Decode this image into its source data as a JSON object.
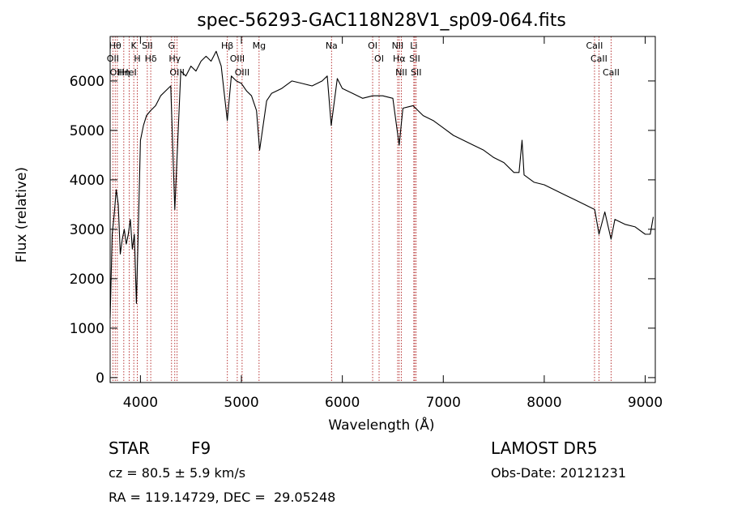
{
  "chart_data": {
    "type": "line",
    "title": "spec-56293-GAC118N28V1_sp09-064.fits",
    "xlabel": "Wavelength (Å)",
    "ylabel": "Flux (relative)",
    "xlim": [
      3700,
      9100
    ],
    "ylim": [
      -100,
      6900
    ],
    "xticks": [
      4000,
      5000,
      6000,
      7000,
      8000,
      9000
    ],
    "yticks": [
      0,
      1000,
      2000,
      3000,
      4000,
      5000,
      6000
    ],
    "grid": false,
    "series": [
      {
        "x": [
          3700,
          3720,
          3740,
          3760,
          3780,
          3800,
          3820,
          3840,
          3860,
          3880,
          3900,
          3920,
          3940,
          3960,
          3980,
          4000,
          4030,
          4060,
          4100,
          4150,
          4200,
          4250,
          4300,
          4340,
          4400,
          4450,
          4500,
          4550,
          4600,
          4650,
          4700,
          4750,
          4800,
          4860,
          4900,
          4950,
          5000,
          5050,
          5100,
          5150,
          5180,
          5250,
          5300,
          5400,
          5500,
          5600,
          5700,
          5800,
          5850,
          5890,
          5950,
          6000,
          6100,
          6200,
          6300,
          6400,
          6500,
          6563,
          6600,
          6700,
          6800,
          6900,
          7000,
          7100,
          7200,
          7300,
          7400,
          7500,
          7600,
          7700,
          7750,
          7780,
          7800,
          7900,
          8000,
          8100,
          8200,
          8300,
          8400,
          8500,
          8542,
          8600,
          8662,
          8700,
          8800,
          8900,
          9000,
          9050,
          9080
        ],
        "y": [
          1200,
          2900,
          3300,
          3800,
          3500,
          2500,
          2800,
          3000,
          2700,
          2900,
          3200,
          2600,
          2900,
          1500,
          3100,
          4800,
          5100,
          5300,
          5400,
          5500,
          5700,
          5800,
          5900,
          3400,
          6200,
          6100,
          6300,
          6200,
          6400,
          6500,
          6400,
          6600,
          6300,
          5200,
          6100,
          6000,
          5950,
          5800,
          5700,
          5400,
          4600,
          5600,
          5750,
          5850,
          6000,
          5950,
          5900,
          6000,
          6100,
          5100,
          6050,
          5850,
          5750,
          5650,
          5700,
          5700,
          5650,
          4700,
          5450,
          5500,
          5300,
          5200,
          5050,
          4900,
          4800,
          4700,
          4600,
          4450,
          4350,
          4150,
          4150,
          4800,
          4100,
          3950,
          3900,
          3800,
          3700,
          3600,
          3500,
          3400,
          2900,
          3350,
          2800,
          3200,
          3100,
          3050,
          2900,
          2900,
          3250
        ]
      }
    ],
    "line_ids": [
      {
        "x": 3750,
        "label": "Hθ"
      },
      {
        "x": 3727,
        "label": "OII"
      },
      {
        "x": 3771,
        "label": "OIII"
      },
      {
        "x": 3835,
        "label": "Hη"
      },
      {
        "x": 3889,
        "label": "HeI"
      },
      {
        "x": 3934,
        "label": "K"
      },
      {
        "x": 3969,
        "label": "H"
      },
      {
        "x": 4068,
        "label": "SII"
      },
      {
        "x": 4102,
        "label": "Hδ"
      },
      {
        "x": 4308,
        "label": "G"
      },
      {
        "x": 4340,
        "label": "Hγ"
      },
      {
        "x": 4363,
        "label": "OIII"
      },
      {
        "x": 4861,
        "label": "Hβ"
      },
      {
        "x": 4959,
        "label": "OIII"
      },
      {
        "x": 5007,
        "label": "OIII"
      },
      {
        "x": 5175,
        "label": "Mg"
      },
      {
        "x": 5893,
        "label": "Na"
      },
      {
        "x": 6300,
        "label": "OI"
      },
      {
        "x": 6364,
        "label": "OI"
      },
      {
        "x": 6548,
        "label": "NII"
      },
      {
        "x": 6563,
        "label": "Hα"
      },
      {
        "x": 6584,
        "label": "NII"
      },
      {
        "x": 6708,
        "label": "Li"
      },
      {
        "x": 6717,
        "label": "SII"
      },
      {
        "x": 6731,
        "label": "SII"
      },
      {
        "x": 8498,
        "label": "CaII"
      },
      {
        "x": 8542,
        "label": "CaII"
      },
      {
        "x": 8662,
        "label": "CaII"
      }
    ]
  },
  "info": {
    "object_class": "STAR",
    "subclass": "F9",
    "survey": "LAMOST DR5",
    "cz": "cz = 80.5 ± 5.9 km/s",
    "obs_date": "Obs-Date: 20121231",
    "coords": "RA = 119.14729, DEC =  29.05248"
  }
}
